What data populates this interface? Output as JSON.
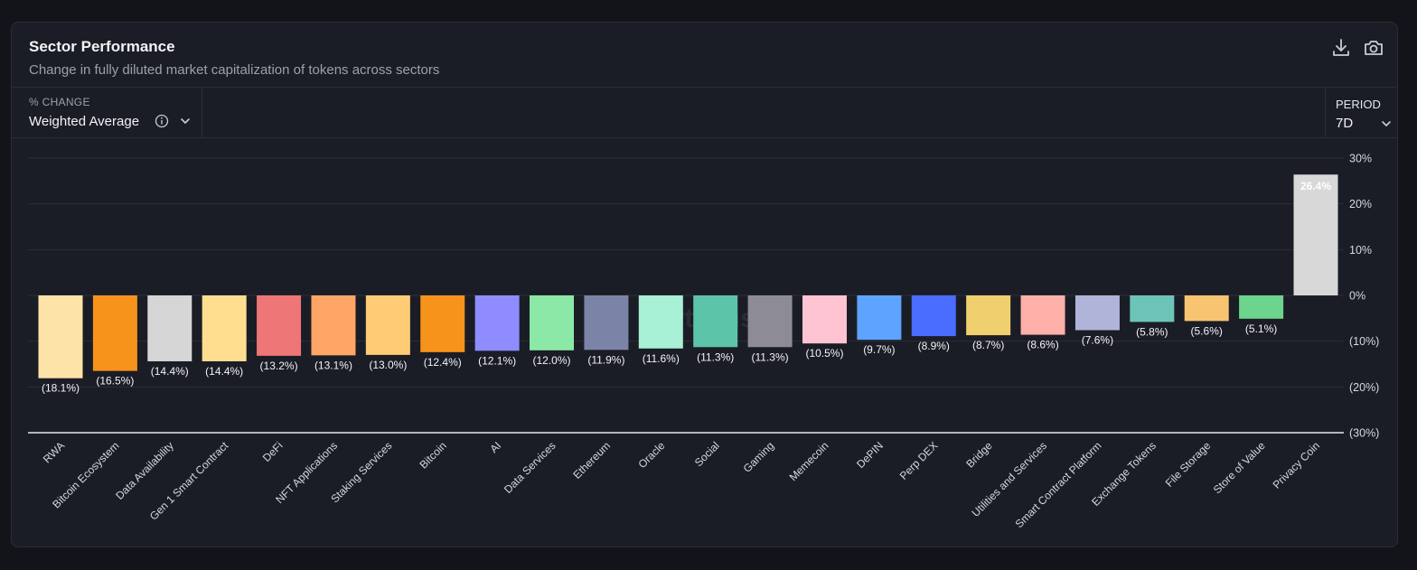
{
  "header": {
    "title": "Sector Performance",
    "subtitle": "Change in fully diluted market capitalization of tokens across sectors",
    "download_icon": "download-icon",
    "camera_icon": "camera-icon"
  },
  "controls": {
    "metric_label": "% CHANGE",
    "metric_value": "Weighted Average",
    "period_label": "PERIOD",
    "period_value": "7D"
  },
  "watermark": "Artemis",
  "chart_data": {
    "type": "bar",
    "title": "Sector Performance",
    "subtitle": "Change in fully diluted market capitalization of tokens across sectors",
    "ylim": [
      -30,
      30
    ],
    "yticks": [
      30,
      20,
      10,
      0,
      -10,
      -20,
      -30
    ],
    "ytick_labels": [
      "30%",
      "20%",
      "10%",
      "0%",
      "(10%)",
      "(20%)",
      "(30%)"
    ],
    "grid": true,
    "legend": "none",
    "categories": [
      "RWA",
      "Bitcoin Ecosystem",
      "Data Availability",
      "Gen 1 Smart Contract",
      "DeFi",
      "NFT Applications",
      "Staking Services",
      "Bitcoin",
      "AI",
      "Data Services",
      "Ethereum",
      "Oracle",
      "Social",
      "Gaming",
      "Memecoin",
      "DePIN",
      "Perp DEX",
      "Bridge",
      "Utilities and Services",
      "Smart Contract Platform",
      "Exchange Tokens",
      "File Storage",
      "Store of Value",
      "Privacy Coin"
    ],
    "values": [
      -18.1,
      -16.5,
      -14.4,
      -14.4,
      -13.2,
      -13.1,
      -13.0,
      -12.4,
      -12.1,
      -12.0,
      -11.9,
      -11.6,
      -11.3,
      -11.3,
      -10.5,
      -9.7,
      -8.9,
      -8.7,
      -8.6,
      -7.6,
      -5.8,
      -5.6,
      -5.1,
      26.4
    ],
    "labels": [
      "(18.1%)",
      "(16.5%)",
      "(14.4%)",
      "(14.4%)",
      "(13.2%)",
      "(13.1%)",
      "(13.0%)",
      "(12.4%)",
      "(12.1%)",
      "(12.0%)",
      "(11.9%)",
      "(11.6%)",
      "(11.3%)",
      "(11.3%)",
      "(10.5%)",
      "(9.7%)",
      "(8.9%)",
      "(8.7%)",
      "(8.6%)",
      "(7.6%)",
      "(5.8%)",
      "(5.6%)",
      "(5.1%)",
      "26.4%"
    ],
    "colors": [
      "#fde3a7",
      "#f7931a",
      "#d6d6d6",
      "#ffdf8f",
      "#ef7676",
      "#ffa566",
      "#ffcc75",
      "#f7931a",
      "#8f8cff",
      "#8ce8a6",
      "#7b84a6",
      "#a8f0d6",
      "#5cc4a8",
      "#8d8b96",
      "#ffc4d1",
      "#5ca4ff",
      "#4a6cff",
      "#f0d06e",
      "#ffb0a8",
      "#b0b4d8",
      "#6cc4b8",
      "#f8c472",
      "#6cd48c",
      "#d8d8d8"
    ]
  }
}
